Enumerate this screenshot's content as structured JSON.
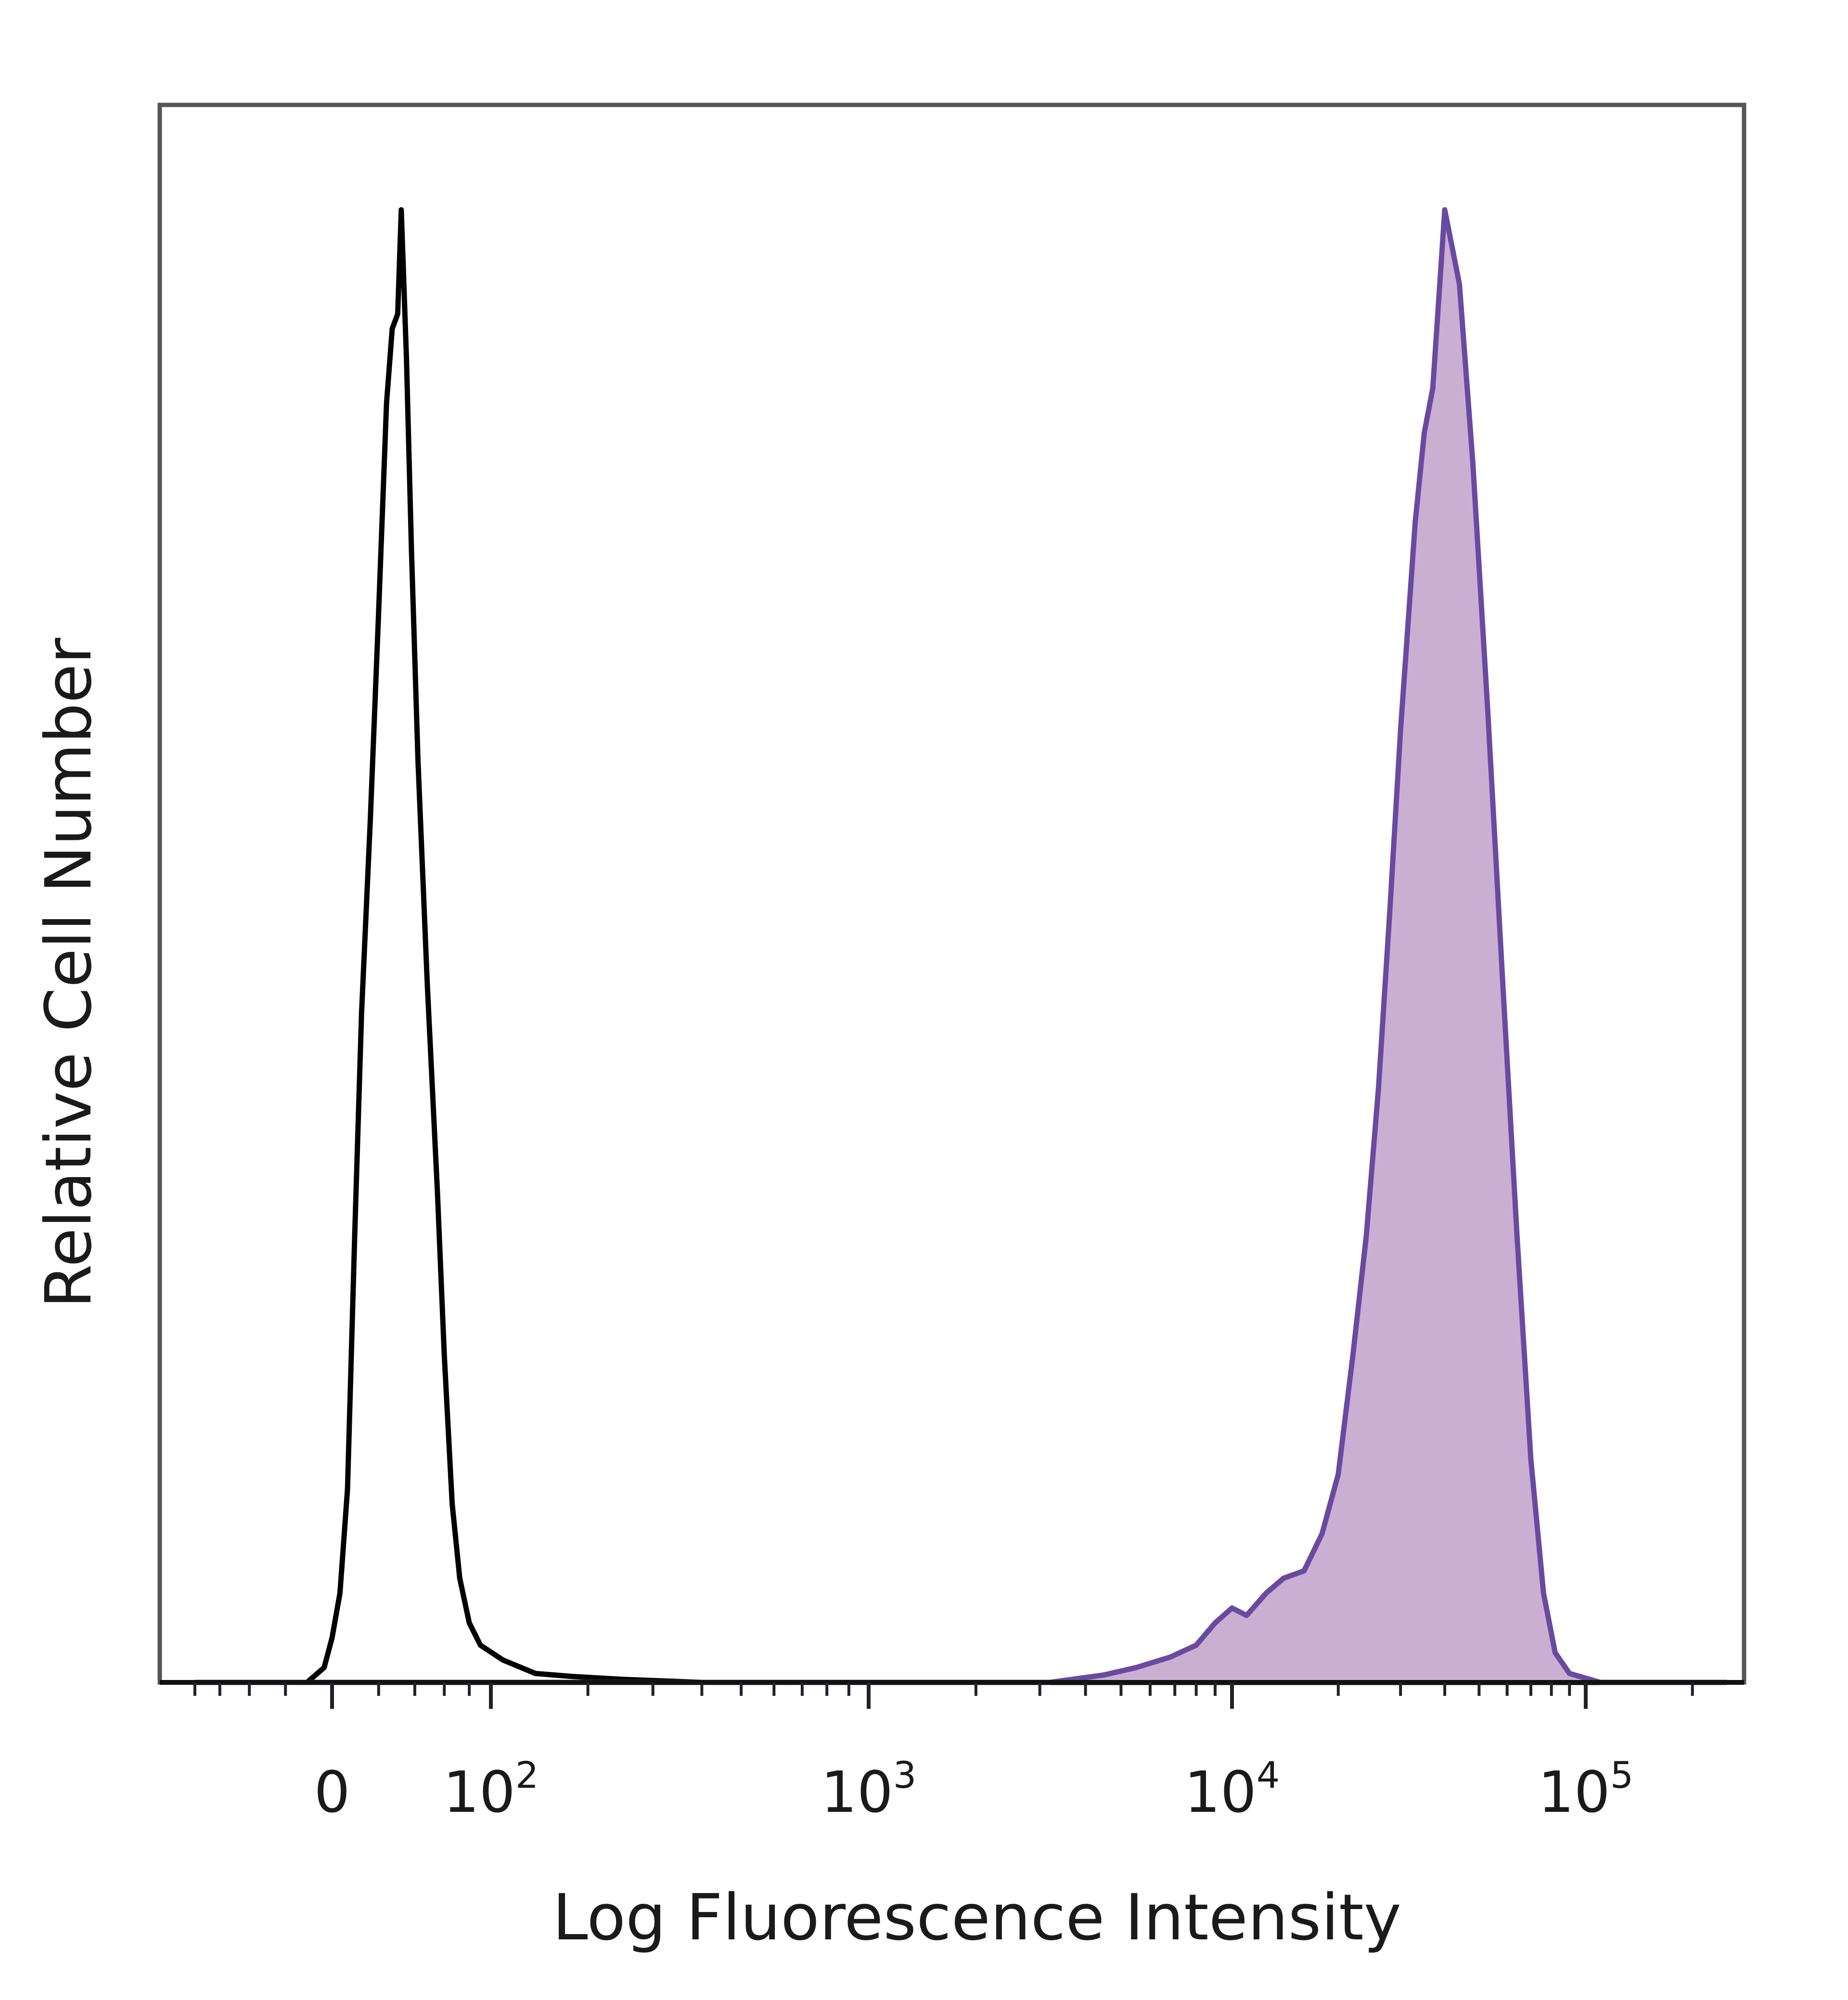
{
  "chart_data": {
    "type": "area",
    "xlabel": "Log Fluorescence Intensity",
    "ylabel": "Relative Cell Number",
    "x_scale": "biexponential",
    "xlim": [
      -80,
      250000
    ],
    "ylim": [
      0,
      1
    ],
    "grid": false,
    "legend": "none",
    "x_ticks": [
      {
        "value": 0,
        "label": "0"
      },
      {
        "value": 100,
        "base": "10",
        "exp": "2"
      },
      {
        "value": 1000,
        "base": "10",
        "exp": "3"
      },
      {
        "value": 10000,
        "base": "10",
        "exp": "4"
      },
      {
        "value": 100000,
        "base": "10",
        "exp": "5"
      }
    ],
    "series": [
      {
        "style": "outline",
        "color": "#000000",
        "points": [
          [
            -80,
            0.0
          ],
          [
            -10,
            0.0
          ],
          [
            -3,
            0.01
          ],
          [
            0,
            0.03
          ],
          [
            3,
            0.06
          ],
          [
            6,
            0.13
          ],
          [
            9,
            0.3
          ],
          [
            12,
            0.45
          ],
          [
            16,
            0.58
          ],
          [
            20,
            0.72
          ],
          [
            24,
            0.86
          ],
          [
            27,
            0.91
          ],
          [
            30,
            0.92
          ],
          [
            32,
            0.99
          ],
          [
            35,
            0.89
          ],
          [
            38,
            0.76
          ],
          [
            42,
            0.62
          ],
          [
            48,
            0.47
          ],
          [
            55,
            0.33
          ],
          [
            60,
            0.22
          ],
          [
            66,
            0.12
          ],
          [
            72,
            0.07
          ],
          [
            80,
            0.04
          ],
          [
            90,
            0.025
          ],
          [
            110,
            0.015
          ],
          [
            140,
            0.006
          ],
          [
            180,
            0.004
          ],
          [
            250,
            0.002
          ],
          [
            400,
            0.0
          ],
          [
            250000,
            0.0
          ]
        ]
      },
      {
        "style": "filled",
        "color": "#6a4aa0",
        "fill": "#c9b0d3",
        "points": [
          [
            -80,
            0.0
          ],
          [
            3200,
            0.0
          ],
          [
            4500,
            0.005
          ],
          [
            5500,
            0.01
          ],
          [
            6800,
            0.017
          ],
          [
            8000,
            0.025
          ],
          [
            9000,
            0.04
          ],
          [
            10000,
            0.05
          ],
          [
            11000,
            0.045
          ],
          [
            12500,
            0.06
          ],
          [
            14000,
            0.07
          ],
          [
            16000,
            0.075
          ],
          [
            18000,
            0.1
          ],
          [
            20000,
            0.14
          ],
          [
            22000,
            0.22
          ],
          [
            24000,
            0.3
          ],
          [
            26000,
            0.4
          ],
          [
            28000,
            0.52
          ],
          [
            30000,
            0.64
          ],
          [
            33000,
            0.78
          ],
          [
            35000,
            0.84
          ],
          [
            37000,
            0.87
          ],
          [
            40000,
            0.99
          ],
          [
            44000,
            0.94
          ],
          [
            48000,
            0.82
          ],
          [
            53000,
            0.65
          ],
          [
            58000,
            0.48
          ],
          [
            64000,
            0.3
          ],
          [
            70000,
            0.15
          ],
          [
            76000,
            0.06
          ],
          [
            82000,
            0.02
          ],
          [
            90000,
            0.006
          ],
          [
            110000,
            0.0
          ],
          [
            250000,
            0.0
          ]
        ]
      }
    ]
  }
}
